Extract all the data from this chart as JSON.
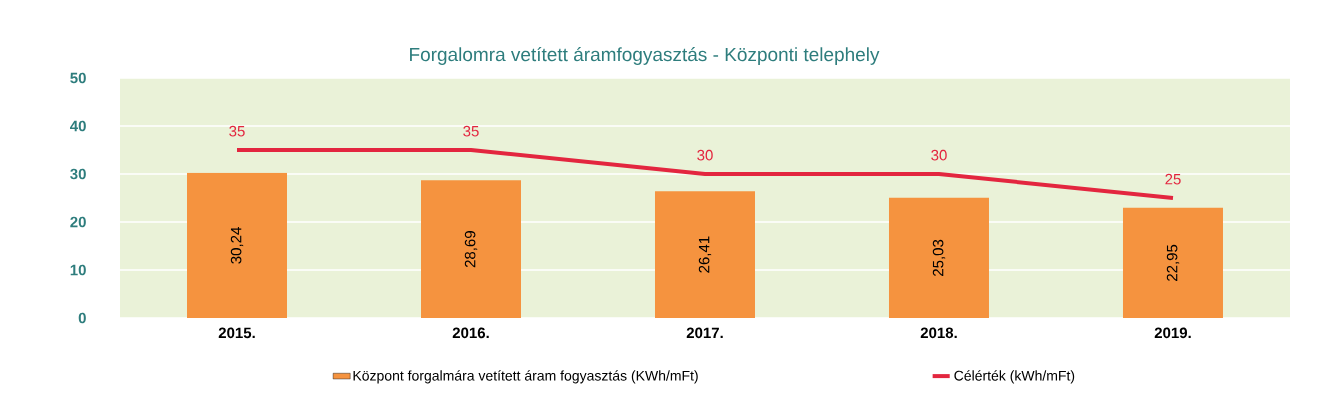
{
  "chart_data": {
    "type": "bar",
    "title": "Forgalomra vetített áramfogyasztás - Központi telephely",
    "categories": [
      "2015.",
      "2016.",
      "2017.",
      "2018.",
      "2019."
    ],
    "series": [
      {
        "name": "Központ forgalmára vetített áram fogyasztás (KWh/mFt)",
        "color": "#f5933f",
        "values": [
          30.24,
          28.69,
          26.41,
          25.03,
          22.95
        ],
        "value_labels": [
          "30,24",
          "28,69",
          "26,41",
          "25,03",
          "22,95"
        ]
      },
      {
        "name": "Célérték (kWh/mFt)",
        "type": "line",
        "color": "#e3263f",
        "values": [
          35,
          35,
          30,
          30,
          25
        ],
        "value_labels": [
          "35",
          "35",
          "30",
          "30",
          "25"
        ]
      }
    ],
    "ylim": [
      0,
      50
    ],
    "yticks": [
      0,
      10,
      20,
      30,
      40,
      50
    ],
    "grid": "y",
    "legend": "bottom"
  }
}
